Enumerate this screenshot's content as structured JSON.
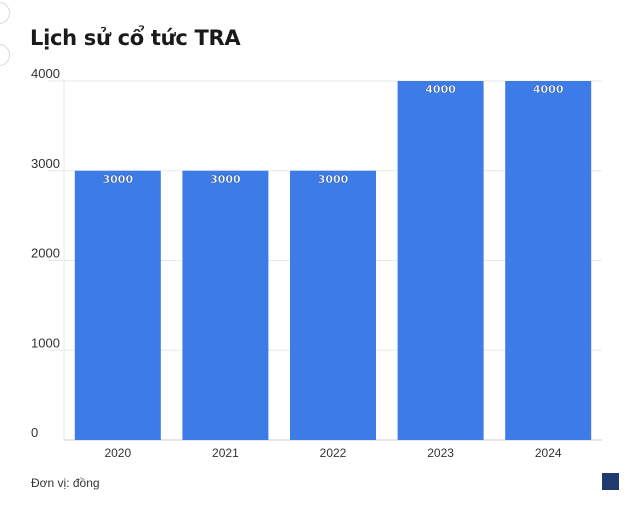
{
  "chart_data": {
    "type": "bar",
    "title": "Lịch sử cổ tức TRA",
    "categories": [
      "2020",
      "2021",
      "2022",
      "2023",
      "2024"
    ],
    "values": [
      3000,
      3000,
      3000,
      4000,
      4000
    ],
    "data_labels": [
      "3000",
      "3000",
      "3000",
      "4000",
      "4000"
    ],
    "yticks": [
      0,
      1000,
      2000,
      3000,
      4000
    ],
    "ylim": [
      0,
      4000
    ],
    "xlabel": "",
    "ylabel": "",
    "grid": true,
    "bar_color": "#3d7be6",
    "footnote": "Đơn vị: đồng"
  },
  "brand": {
    "logo_icon": "vietstock-logo-icon",
    "logo_color": "#1f3a6e"
  }
}
